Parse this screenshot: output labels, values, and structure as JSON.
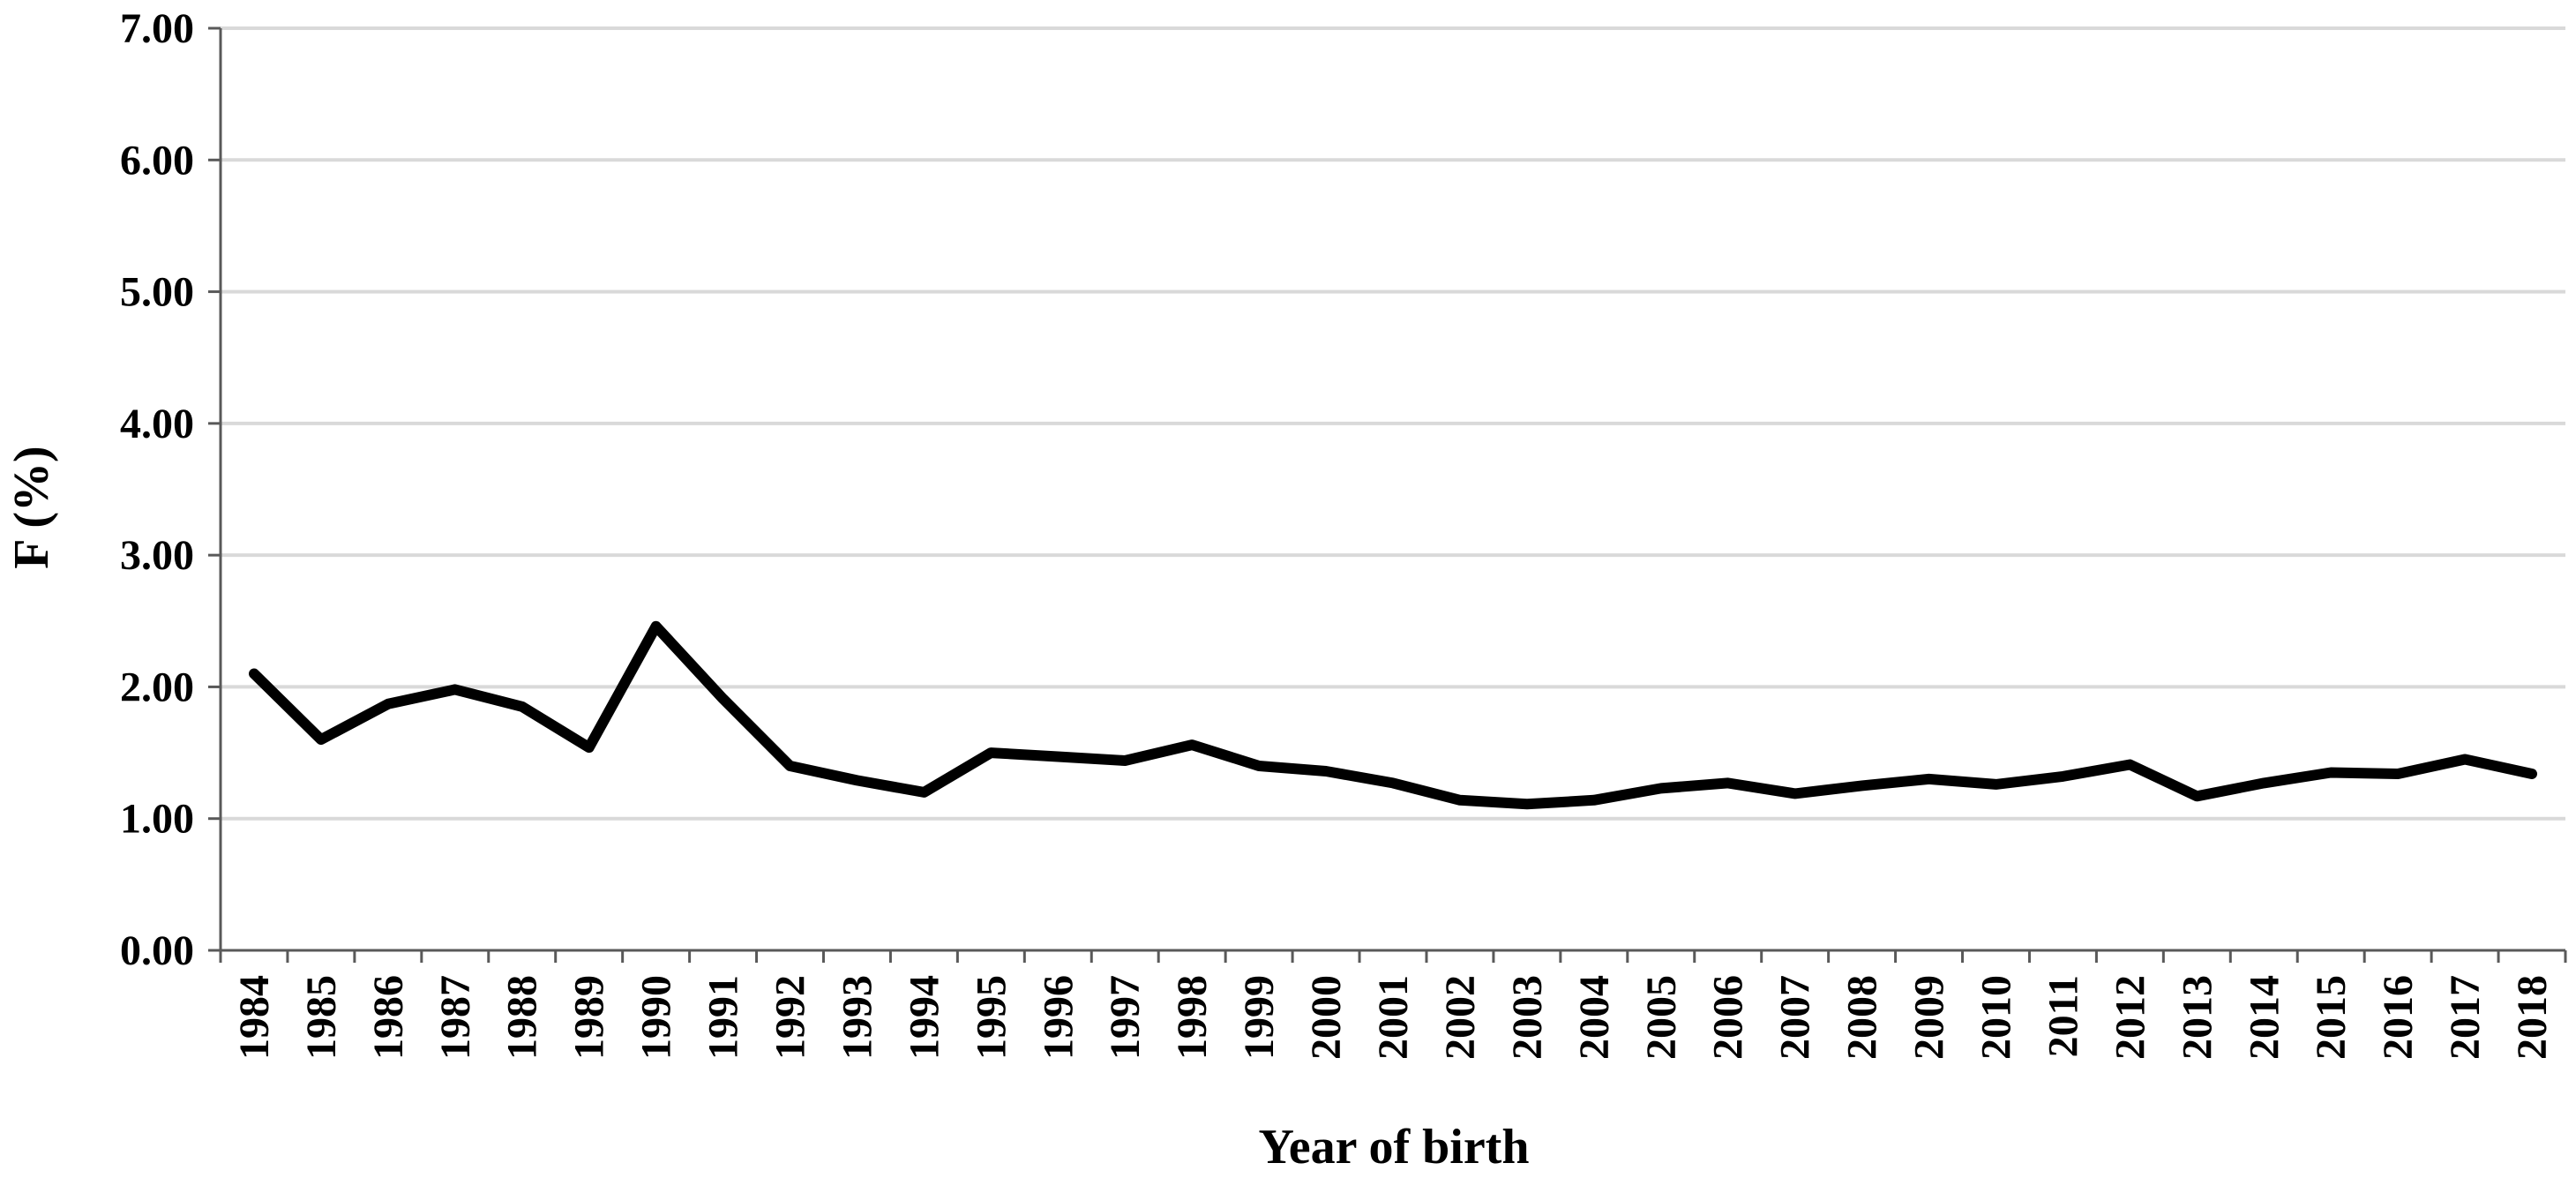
{
  "colors": {
    "line": "#000000",
    "grid": "#d9d9d9",
    "axis": "#595959",
    "background": "#ffffff"
  },
  "chart_data": {
    "type": "line",
    "title": "",
    "xlabel": "Year of birth",
    "ylabel": "F (%)",
    "ylim": [
      0,
      7
    ],
    "yticks": [
      "0.00",
      "1.00",
      "2.00",
      "3.00",
      "4.00",
      "5.00",
      "6.00",
      "7.00"
    ],
    "grid": true,
    "legend": "none",
    "categories": [
      "1984",
      "1985",
      "1986",
      "1987",
      "1988",
      "1989",
      "1990",
      "1991",
      "1992",
      "1993",
      "1994",
      "1995",
      "1996",
      "1997",
      "1998",
      "1999",
      "2000",
      "2001",
      "2002",
      "2003",
      "2004",
      "2005",
      "2006",
      "2007",
      "2008",
      "2009",
      "2010",
      "2011",
      "2012",
      "2013",
      "2014",
      "2015",
      "2016",
      "2017",
      "2018"
    ],
    "series": [
      {
        "values": [
          2.1,
          1.6,
          1.87,
          1.98,
          1.85,
          1.54,
          2.46,
          1.91,
          1.4,
          1.29,
          1.2,
          1.5,
          1.47,
          1.44,
          1.56,
          1.4,
          1.36,
          1.27,
          1.14,
          1.11,
          1.14,
          1.23,
          1.27,
          1.19,
          1.25,
          1.3,
          1.26,
          1.32,
          1.41,
          1.17,
          1.27,
          1.35,
          1.34,
          1.45,
          1.34
        ]
      }
    ]
  }
}
